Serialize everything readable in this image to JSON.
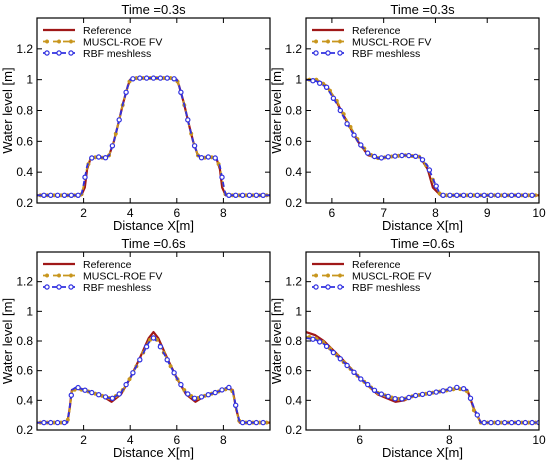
{
  "colors": {
    "reference": "#a01818",
    "muscl": "#c8961e",
    "rbf": "#3030e0",
    "axis": "#000000"
  },
  "chart_data": [
    {
      "type": "line",
      "title": "Time =0.3s",
      "xlabel": "Distance X[m]",
      "ylabel": "Water level [m]",
      "xlim": [
        0,
        10
      ],
      "ylim": [
        0.2,
        1.4
      ],
      "xticks": [
        "2",
        "4",
        "6",
        "8"
      ],
      "yticks": [
        "0.2",
        "0.4",
        "0.6",
        "0.8",
        "1",
        "1.2"
      ],
      "xtick_values": [
        2,
        4,
        6,
        8
      ],
      "ytick_values": [
        0.2,
        0.4,
        0.6,
        0.8,
        1,
        1.2
      ],
      "legend": [
        "Reference",
        "MUSCL-ROE FV",
        "RBF meshless"
      ],
      "legend_position": "top-left",
      "series": [
        {
          "name": "Reference",
          "x": [
            0,
            1.9,
            2.05,
            2.15,
            2.3,
            2.6,
            2.9,
            3.1,
            3.3,
            3.5,
            3.7,
            3.9,
            4.0,
            4.2,
            5.0,
            5.8,
            6.0,
            6.1,
            6.3,
            6.5,
            6.7,
            6.9,
            7.1,
            7.4,
            7.7,
            7.85,
            7.95,
            8.1,
            10
          ],
          "y": [
            0.25,
            0.25,
            0.3,
            0.42,
            0.49,
            0.5,
            0.49,
            0.51,
            0.6,
            0.72,
            0.85,
            0.96,
            1.0,
            1.01,
            1.01,
            1.01,
            1.0,
            0.96,
            0.85,
            0.72,
            0.6,
            0.51,
            0.49,
            0.5,
            0.49,
            0.42,
            0.3,
            0.25,
            0.25
          ]
        },
        {
          "name": "MUSCL-ROE FV",
          "x": [
            0,
            1.9,
            2.0,
            2.15,
            2.3,
            2.6,
            2.9,
            3.1,
            3.3,
            3.5,
            3.7,
            3.9,
            4.0,
            4.2,
            5.0,
            5.8,
            6.0,
            6.1,
            6.3,
            6.5,
            6.7,
            6.9,
            7.1,
            7.4,
            7.7,
            7.85,
            8.0,
            8.1,
            10
          ],
          "y": [
            0.25,
            0.25,
            0.31,
            0.43,
            0.49,
            0.5,
            0.49,
            0.51,
            0.6,
            0.72,
            0.85,
            0.96,
            1.0,
            1.01,
            1.01,
            1.01,
            1.0,
            0.96,
            0.85,
            0.72,
            0.6,
            0.51,
            0.49,
            0.5,
            0.49,
            0.43,
            0.31,
            0.25,
            0.25
          ]
        },
        {
          "name": "RBF meshless",
          "x": [
            0,
            1.9,
            2.0,
            2.15,
            2.3,
            2.6,
            2.9,
            3.1,
            3.3,
            3.5,
            3.7,
            3.9,
            4.0,
            4.2,
            5.0,
            5.8,
            6.0,
            6.1,
            6.3,
            6.5,
            6.7,
            6.9,
            7.1,
            7.4,
            7.7,
            7.85,
            8.0,
            8.1,
            10
          ],
          "y": [
            0.25,
            0.25,
            0.32,
            0.44,
            0.49,
            0.5,
            0.49,
            0.51,
            0.6,
            0.72,
            0.85,
            0.96,
            1.0,
            1.01,
            1.01,
            1.01,
            1.0,
            0.96,
            0.85,
            0.72,
            0.6,
            0.51,
            0.49,
            0.5,
            0.49,
            0.44,
            0.32,
            0.25,
            0.25
          ]
        }
      ]
    },
    {
      "type": "line",
      "title": "Time =0.3s",
      "xlabel": "Distance X[m]",
      "ylabel": "Water level [m]",
      "xlim": [
        5.5,
        10
      ],
      "ylim": [
        0.2,
        1.4
      ],
      "xticks": [
        "6",
        "7",
        "8",
        "9",
        "10"
      ],
      "yticks": [
        "0.2",
        "0.4",
        "0.6",
        "0.8",
        "1",
        "1.2"
      ],
      "xtick_values": [
        6,
        7,
        8,
        9,
        10
      ],
      "ytick_values": [
        0.2,
        0.4,
        0.6,
        0.8,
        1,
        1.2
      ],
      "legend": [
        "Reference",
        "MUSCL-ROE FV",
        "RBF meshless"
      ],
      "legend_position": "top-left",
      "series": [
        {
          "name": "Reference",
          "x": [
            5.5,
            5.7,
            5.9,
            6.1,
            6.3,
            6.5,
            6.7,
            6.9,
            7.1,
            7.4,
            7.7,
            7.85,
            7.95,
            8.1,
            10
          ],
          "y": [
            1.0,
            1.0,
            0.96,
            0.85,
            0.72,
            0.6,
            0.51,
            0.49,
            0.5,
            0.51,
            0.5,
            0.42,
            0.3,
            0.25,
            0.25
          ]
        },
        {
          "name": "MUSCL-ROE FV",
          "x": [
            5.5,
            5.7,
            5.9,
            6.1,
            6.3,
            6.5,
            6.7,
            6.9,
            7.1,
            7.4,
            7.7,
            7.85,
            8.0,
            8.1,
            10
          ],
          "y": [
            1.0,
            1.0,
            0.96,
            0.86,
            0.73,
            0.61,
            0.52,
            0.49,
            0.5,
            0.51,
            0.5,
            0.43,
            0.31,
            0.25,
            0.25
          ]
        },
        {
          "name": "RBF meshless",
          "x": [
            5.5,
            5.7,
            5.9,
            6.1,
            6.3,
            6.5,
            6.7,
            6.9,
            7.1,
            7.4,
            7.7,
            7.85,
            8.0,
            8.1,
            10
          ],
          "y": [
            1.0,
            0.99,
            0.95,
            0.84,
            0.71,
            0.6,
            0.52,
            0.49,
            0.5,
            0.51,
            0.5,
            0.44,
            0.32,
            0.25,
            0.25
          ]
        }
      ]
    },
    {
      "type": "line",
      "title": "Time =0.6s",
      "xlabel": "Distance X[m]",
      "ylabel": "Water level [m]",
      "xlim": [
        0,
        10
      ],
      "ylim": [
        0.2,
        1.4
      ],
      "xticks": [
        "2",
        "4",
        "6",
        "8"
      ],
      "yticks": [
        "0.2",
        "0.4",
        "0.6",
        "0.8",
        "1",
        "1.2"
      ],
      "xtick_values": [
        2,
        4,
        6,
        8
      ],
      "ytick_values": [
        0.2,
        0.4,
        0.6,
        0.8,
        1,
        1.2
      ],
      "legend": [
        "Reference",
        "MUSCL-ROE FV",
        "RBF meshless"
      ],
      "legend_position": "top-left",
      "series": [
        {
          "name": "Reference",
          "x": [
            0,
            1.3,
            1.4,
            1.5,
            1.7,
            2.2,
            2.8,
            3.2,
            3.6,
            4.0,
            4.4,
            4.8,
            5.0,
            5.2,
            5.6,
            6.0,
            6.4,
            6.8,
            7.2,
            7.8,
            8.2,
            8.4,
            8.55,
            8.7,
            10
          ],
          "y": [
            0.25,
            0.25,
            0.34,
            0.47,
            0.48,
            0.46,
            0.43,
            0.39,
            0.44,
            0.55,
            0.68,
            0.82,
            0.86,
            0.82,
            0.68,
            0.55,
            0.44,
            0.39,
            0.43,
            0.46,
            0.48,
            0.47,
            0.34,
            0.25,
            0.25
          ]
        },
        {
          "name": "MUSCL-ROE FV",
          "x": [
            0,
            1.3,
            1.4,
            1.5,
            1.7,
            2.2,
            2.8,
            3.2,
            3.6,
            4.0,
            4.4,
            4.8,
            5.0,
            5.2,
            5.6,
            6.0,
            6.4,
            6.8,
            7.2,
            7.8,
            8.2,
            8.4,
            8.55,
            8.7,
            10
          ],
          "y": [
            0.25,
            0.25,
            0.33,
            0.46,
            0.48,
            0.46,
            0.43,
            0.41,
            0.45,
            0.55,
            0.67,
            0.8,
            0.83,
            0.8,
            0.67,
            0.55,
            0.45,
            0.41,
            0.43,
            0.46,
            0.48,
            0.46,
            0.33,
            0.25,
            0.25
          ]
        },
        {
          "name": "RBF meshless",
          "x": [
            0,
            1.3,
            1.4,
            1.5,
            1.7,
            2.2,
            2.8,
            3.2,
            3.6,
            4.0,
            4.4,
            4.8,
            5.0,
            5.2,
            5.6,
            6.0,
            6.4,
            6.8,
            7.2,
            7.8,
            8.2,
            8.4,
            8.55,
            8.7,
            10
          ],
          "y": [
            0.25,
            0.25,
            0.35,
            0.47,
            0.49,
            0.46,
            0.43,
            0.41,
            0.45,
            0.55,
            0.67,
            0.79,
            0.82,
            0.79,
            0.67,
            0.55,
            0.45,
            0.41,
            0.43,
            0.46,
            0.49,
            0.47,
            0.35,
            0.25,
            0.25
          ]
        }
      ]
    },
    {
      "type": "line",
      "title": "Time =0.6s",
      "xlabel": "Distance X[m]",
      "ylabel": "Water level [m]",
      "xlim": [
        4.8,
        10
      ],
      "ylim": [
        0.2,
        1.4
      ],
      "xticks": [
        "6",
        "8",
        "10"
      ],
      "yticks": [
        "0.2",
        "0.4",
        "0.6",
        "0.8",
        "1",
        "1.2"
      ],
      "xtick_values": [
        6,
        8,
        10
      ],
      "ytick_values": [
        0.2,
        0.4,
        0.6,
        0.8,
        1,
        1.2
      ],
      "legend": [
        "Reference",
        "MUSCL-ROE FV",
        "RBF meshless"
      ],
      "legend_position": "top-left",
      "series": [
        {
          "name": "Reference",
          "x": [
            4.8,
            5.0,
            5.2,
            5.6,
            6.0,
            6.4,
            6.8,
            7.0,
            7.2,
            7.8,
            8.2,
            8.4,
            8.55,
            8.7,
            10
          ],
          "y": [
            0.86,
            0.84,
            0.8,
            0.68,
            0.55,
            0.44,
            0.39,
            0.4,
            0.43,
            0.46,
            0.48,
            0.47,
            0.34,
            0.25,
            0.25
          ]
        },
        {
          "name": "MUSCL-ROE FV",
          "x": [
            4.8,
            5.0,
            5.2,
            5.6,
            6.0,
            6.4,
            6.8,
            7.0,
            7.2,
            7.8,
            8.2,
            8.4,
            8.55,
            8.7,
            10
          ],
          "y": [
            0.83,
            0.82,
            0.79,
            0.67,
            0.55,
            0.45,
            0.41,
            0.41,
            0.43,
            0.46,
            0.48,
            0.46,
            0.33,
            0.25,
            0.25
          ]
        },
        {
          "name": "RBF meshless",
          "x": [
            4.8,
            5.0,
            5.2,
            5.6,
            6.0,
            6.4,
            6.8,
            7.0,
            7.2,
            7.8,
            8.2,
            8.4,
            8.55,
            8.7,
            10
          ],
          "y": [
            0.82,
            0.81,
            0.78,
            0.67,
            0.55,
            0.45,
            0.41,
            0.41,
            0.43,
            0.46,
            0.49,
            0.47,
            0.35,
            0.25,
            0.25
          ]
        }
      ]
    }
  ]
}
